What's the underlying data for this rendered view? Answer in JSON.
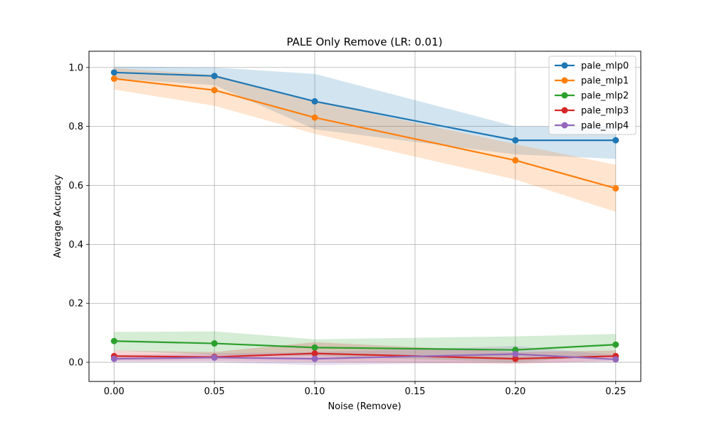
{
  "chart_data": {
    "type": "line",
    "title": "PALE Only Remove (LR: 0.01)",
    "xlabel": "Noise (Remove)",
    "ylabel": "Average Accuracy",
    "x": [
      0.0,
      0.05,
      0.1,
      0.2,
      0.25
    ],
    "xticks": [
      0.0,
      0.05,
      0.1,
      0.15,
      0.2,
      0.25
    ],
    "xtick_labels": [
      "0.00",
      "0.05",
      "0.10",
      "0.15",
      "0.20",
      "0.25"
    ],
    "yticks": [
      0.0,
      0.2,
      0.4,
      0.6,
      0.8,
      1.0
    ],
    "ytick_labels": [
      "0.0",
      "0.2",
      "0.4",
      "0.6",
      "0.8",
      "1.0"
    ],
    "xlim": [
      -0.0125,
      0.2625
    ],
    "ylim": [
      -0.065,
      1.055
    ],
    "grid": true,
    "legend_position": "top-right",
    "series": [
      {
        "name": "pale_mlp0",
        "color": "#1f77b4",
        "values": [
          0.983,
          0.971,
          0.885,
          0.753,
          0.753
        ],
        "lower": [
          0.962,
          0.94,
          0.79,
          0.705,
          0.69
        ],
        "upper": [
          1.003,
          1.0,
          0.978,
          0.8,
          0.8
        ]
      },
      {
        "name": "pale_mlp1",
        "color": "#ff7f0e",
        "values": [
          0.962,
          0.923,
          0.83,
          0.685,
          0.59
        ],
        "lower": [
          0.925,
          0.87,
          0.775,
          0.62,
          0.51
        ],
        "upper": [
          0.998,
          0.975,
          0.885,
          0.74,
          0.67
        ]
      },
      {
        "name": "pale_mlp2",
        "color": "#2ca02c",
        "values": [
          0.072,
          0.064,
          0.05,
          0.042,
          0.06
        ],
        "lower": [
          0.04,
          0.025,
          0.022,
          0.0,
          0.025
        ],
        "upper": [
          0.103,
          0.105,
          0.078,
          0.088,
          0.096
        ]
      },
      {
        "name": "pale_mlp3",
        "color": "#d62728",
        "values": [
          0.021,
          0.018,
          0.03,
          0.012,
          0.021
        ],
        "lower": [
          0.005,
          0.005,
          0.002,
          -0.005,
          0.005
        ],
        "upper": [
          0.04,
          0.035,
          0.068,
          0.035,
          0.04
        ]
      },
      {
        "name": "pale_mlp4",
        "color": "#9467bd",
        "values": [
          0.012,
          0.016,
          0.012,
          0.028,
          0.01
        ],
        "lower": [
          0.0,
          0.0,
          -0.01,
          0.0,
          0.0
        ],
        "upper": [
          0.025,
          0.03,
          0.035,
          0.055,
          0.025
        ]
      }
    ]
  }
}
